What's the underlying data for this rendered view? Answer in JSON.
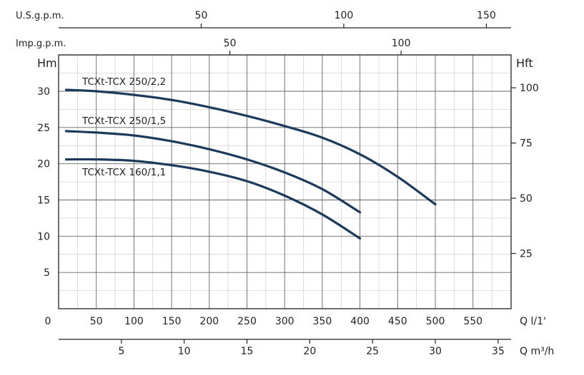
{
  "chart_data": {
    "type": "line",
    "x_label_lpm": "Q l/1'",
    "x_label_m3h": "Q m³/h",
    "y_label_left": "Hm",
    "y_label_right": "Hft",
    "top_axis_us_label": "U.S.g.p.m.",
    "top_axis_imp_label": "Imp.g.p.m.",
    "x_ticks_lpm": [
      "0",
      "50",
      "100",
      "150",
      "200",
      "250",
      "300",
      "350",
      "400",
      "450",
      "500",
      "550"
    ],
    "x_ticks_m3h": [
      "5",
      "10",
      "15",
      "20",
      "25",
      "30",
      "35"
    ],
    "y_ticks_m": [
      "5",
      "10",
      "15",
      "20",
      "25",
      "30"
    ],
    "y_ticks_ft": [
      "25",
      "50",
      "75",
      "100"
    ],
    "top_ticks_us": [
      "50",
      "100",
      "150"
    ],
    "top_ticks_imp": [
      "50",
      "100"
    ],
    "xlim_lpm": [
      0,
      580
    ],
    "ylim_m": [
      0,
      35
    ],
    "grid": true,
    "series": [
      {
        "name": "TCXt-TCX 250/2,2",
        "x": [
          10,
          50,
          100,
          150,
          200,
          250,
          300,
          350,
          400,
          450,
          500
        ],
        "y": [
          30.2,
          30.0,
          29.5,
          28.8,
          27.8,
          26.6,
          25.2,
          23.6,
          21.3,
          18.2,
          14.4
        ]
      },
      {
        "name": "TCXt-TCX 250/1,5",
        "x": [
          10,
          50,
          100,
          150,
          200,
          250,
          300,
          350,
          400
        ],
        "y": [
          24.5,
          24.3,
          23.9,
          23.1,
          22.0,
          20.6,
          18.8,
          16.5,
          13.3
        ]
      },
      {
        "name": "TCXt-TCX 160/1,1",
        "x": [
          10,
          50,
          100,
          150,
          200,
          250,
          300,
          350,
          400
        ],
        "y": [
          20.6,
          20.6,
          20.4,
          19.8,
          18.9,
          17.6,
          15.6,
          13.0,
          9.7
        ]
      }
    ],
    "colors": {
      "curve": "#1b3a5c",
      "grid_major": "#666666",
      "grid_minor": "#cccccc",
      "axis": "#222222"
    }
  }
}
